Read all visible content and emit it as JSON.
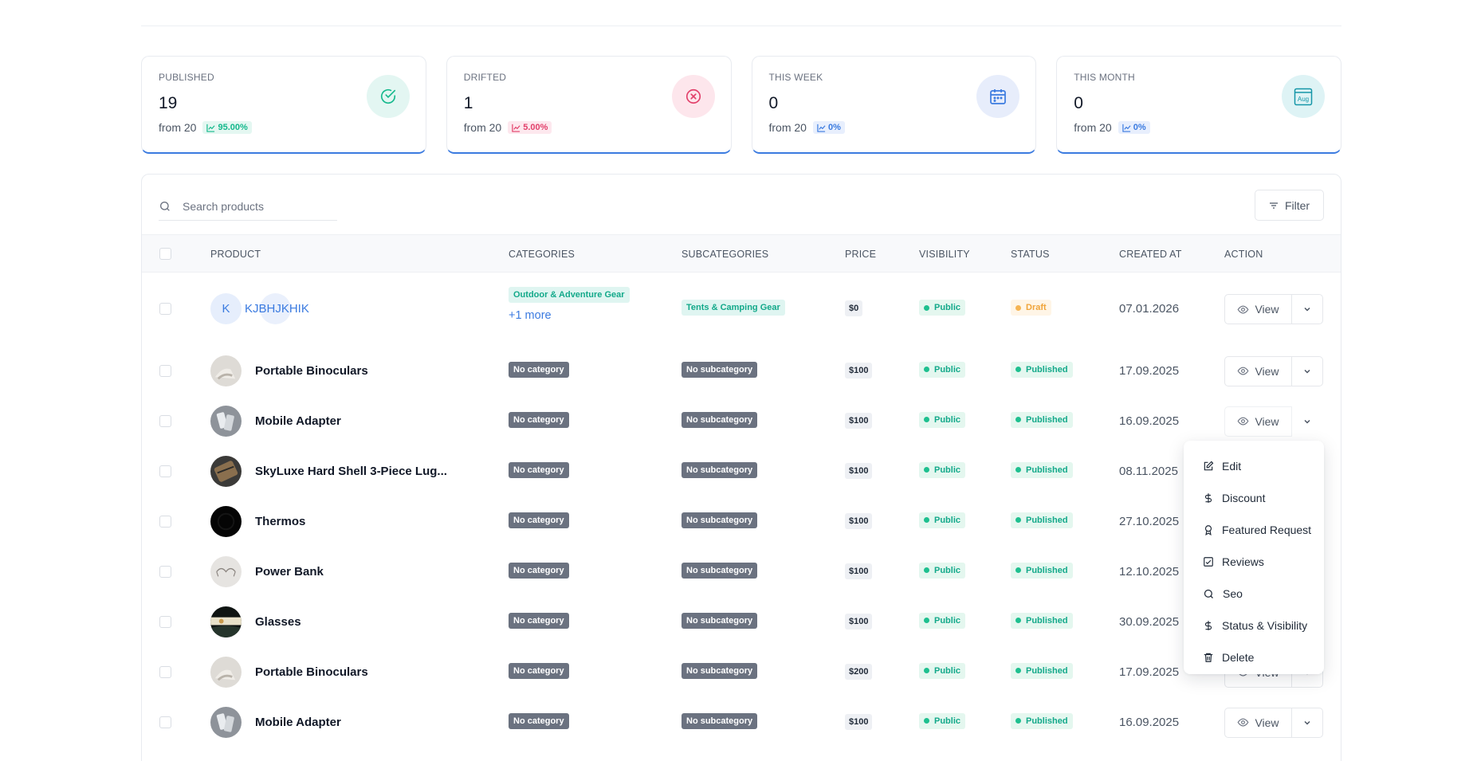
{
  "stats": [
    {
      "label": "PUBLISHED",
      "value": "19",
      "from": "from 20",
      "badge": "95.00%",
      "tone": "green",
      "icon": "check-circle-icon"
    },
    {
      "label": "DRIFTED",
      "value": "1",
      "from": "from 20",
      "badge": "5.00%",
      "tone": "red",
      "icon": "x-circle-icon"
    },
    {
      "label": "THIS WEEK",
      "value": "0",
      "from": "from 20",
      "badge": "0%",
      "tone": "blue",
      "icon": "calendar-week-icon"
    },
    {
      "label": "THIS MONTH",
      "value": "0",
      "from": "from 20",
      "badge": "0%",
      "tone": "teal",
      "icon": "calendar-month-icon",
      "icon_text": "Aug"
    }
  ],
  "search": {
    "placeholder": "Search products"
  },
  "filter_label": "Filter",
  "columns": {
    "product": "PRODUCT",
    "categories": "CATEGORIES",
    "subcategories": "SUBCATEGORIES",
    "price": "PRICE",
    "visibility": "VISIBILITY",
    "status": "STATUS",
    "created_at": "CREATED AT",
    "action": "ACTION"
  },
  "view_label": "View",
  "rows": [
    {
      "initial": "K",
      "name": "KJBHJKHIK",
      "category": "Outdoor & Adventure Gear",
      "category_more": "+1 more",
      "subcategory": "Tents & Camping Gear",
      "price": "$0",
      "visibility": "Public",
      "status": "Draft",
      "date": "07.01.2026"
    },
    {
      "name": "Portable Binoculars",
      "category": "No category",
      "subcategory": "No subcategory",
      "price": "$100",
      "visibility": "Public",
      "status": "Published",
      "date": "17.09.2025"
    },
    {
      "name": "Mobile Adapter",
      "category": "No category",
      "subcategory": "No subcategory",
      "price": "$100",
      "visibility": "Public",
      "status": "Published",
      "date": "16.09.2025"
    },
    {
      "name": "SkyLuxe Hard Shell 3-Piece Lug...",
      "category": "No category",
      "subcategory": "No subcategory",
      "price": "$100",
      "visibility": "Public",
      "status": "Published",
      "date": "08.11.2025"
    },
    {
      "name": "Thermos",
      "category": "No category",
      "subcategory": "No subcategory",
      "price": "$100",
      "visibility": "Public",
      "status": "Published",
      "date": "27.10.2025"
    },
    {
      "name": "Power Bank",
      "category": "No category",
      "subcategory": "No subcategory",
      "price": "$100",
      "visibility": "Public",
      "status": "Published",
      "date": "12.10.2025"
    },
    {
      "name": "Glasses",
      "category": "No category",
      "subcategory": "No subcategory",
      "price": "$100",
      "visibility": "Public",
      "status": "Published",
      "date": "30.09.2025"
    },
    {
      "name": "Portable Binoculars",
      "category": "No category",
      "subcategory": "No subcategory",
      "price": "$200",
      "visibility": "Public",
      "status": "Published",
      "date": "17.09.2025"
    },
    {
      "name": "Mobile Adapter",
      "category": "No category",
      "subcategory": "No subcategory",
      "price": "$100",
      "visibility": "Public",
      "status": "Published",
      "date": "16.09.2025"
    }
  ],
  "menu": [
    {
      "label": "Edit",
      "icon": "edit-icon"
    },
    {
      "label": "Discount",
      "icon": "dollar-icon"
    },
    {
      "label": "Featured Request",
      "icon": "award-icon"
    },
    {
      "label": "Reviews",
      "icon": "review-icon"
    },
    {
      "label": "Seo",
      "icon": "search-icon"
    },
    {
      "label": "Status & Visibility",
      "icon": "dollar-icon"
    },
    {
      "label": "Delete",
      "icon": "trash-icon"
    }
  ],
  "colors": {
    "accent": "#3b7be0",
    "success": "#13a98a",
    "danger": "#e2416b",
    "warning": "#f0a43a"
  }
}
